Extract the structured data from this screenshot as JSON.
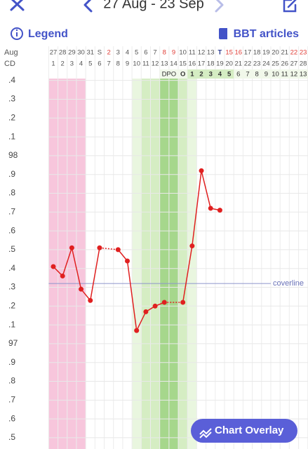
{
  "header": {
    "date_range": "27 Aug - 23 Sep",
    "legend": "Legend",
    "articles": "BBT articles"
  },
  "chart_data": {
    "type": "line",
    "month_label": "Aug",
    "cd_label": "CD",
    "categories": [
      "27",
      "28",
      "29",
      "30",
      "31",
      "S",
      "2",
      "3",
      "4",
      "5",
      "6",
      "7",
      "8",
      "9",
      "10",
      "11",
      "12",
      "13",
      "T",
      "15",
      "16",
      "17",
      "18",
      "19",
      "20",
      "21",
      "22",
      "23"
    ],
    "category_colors": [
      "#555",
      "#555",
      "#555",
      "#555",
      "#555",
      "#555",
      "#e0403a",
      "#555",
      "#555",
      "#555",
      "#555",
      "#555",
      "#e0403a",
      "#e0403a",
      "#555",
      "#555",
      "#555",
      "#555",
      "#2b3a8f",
      "#e0403a",
      "#e0403a",
      "#555",
      "#555",
      "#555",
      "#555",
      "#555",
      "#e0403a",
      "#e0403a"
    ],
    "cycle_days": [
      1,
      2,
      3,
      4,
      5,
      6,
      7,
      8,
      9,
      10,
      11,
      12,
      13,
      14,
      15,
      16,
      17,
      18,
      19,
      20,
      21,
      22,
      23,
      24,
      25,
      26,
      27,
      28
    ],
    "dpo_label": "DPO",
    "ovulation_label": "O",
    "dpo_days": [
      1,
      2,
      3,
      4,
      5,
      6,
      7,
      8,
      9,
      10,
      11,
      12,
      13
    ],
    "values": [
      97.41,
      97.36,
      97.51,
      97.29,
      97.23,
      97.51,
      null,
      97.5,
      97.44,
      97.07,
      97.17,
      97.2,
      97.22,
      null,
      97.22,
      97.52,
      97.92,
      97.72,
      97.71,
      null,
      null,
      null,
      null,
      null,
      null,
      null,
      null,
      null
    ],
    "color": "#e02020",
    "ylim": [
      96.44,
      98.41
    ],
    "yticks": [
      {
        "value": 98.4,
        "label": ".4"
      },
      {
        "value": 98.3,
        "label": ".3"
      },
      {
        "value": 98.2,
        "label": ".2"
      },
      {
        "value": 98.1,
        "label": ".1"
      },
      98,
      {
        "value": 97.9,
        "label": ".9"
      },
      {
        "value": 97.8,
        "label": ".8"
      },
      {
        "value": 97.7,
        "label": ".7"
      },
      {
        "value": 97.6,
        "label": ".6"
      },
      {
        "value": 97.5,
        "label": ".5"
      },
      {
        "value": 97.4,
        "label": ".4"
      },
      {
        "value": 97.3,
        "label": ".3"
      },
      {
        "value": 97.2,
        "label": ".2"
      },
      {
        "value": 97.1,
        "label": ".1"
      },
      97,
      {
        "value": 96.9,
        "label": ".9"
      },
      {
        "value": 96.8,
        "label": ".8"
      },
      {
        "value": 96.7,
        "label": ".7"
      },
      {
        "value": 96.6,
        "label": ".6"
      },
      {
        "value": 96.5,
        "label": ".5"
      }
    ],
    "grid": true,
    "coverline": 97.32,
    "coverline_label": "coverline",
    "bands": [
      {
        "from": 1,
        "to": 4,
        "color": "#f7c6dc"
      },
      {
        "from": 10,
        "to": 16,
        "color": "#e9f6df"
      },
      {
        "from": 11,
        "to": 15,
        "color": "#d5edc3"
      },
      {
        "from": 13,
        "to": 14,
        "color": "#a6d78c"
      }
    ]
  },
  "button": "Chart Overlay"
}
